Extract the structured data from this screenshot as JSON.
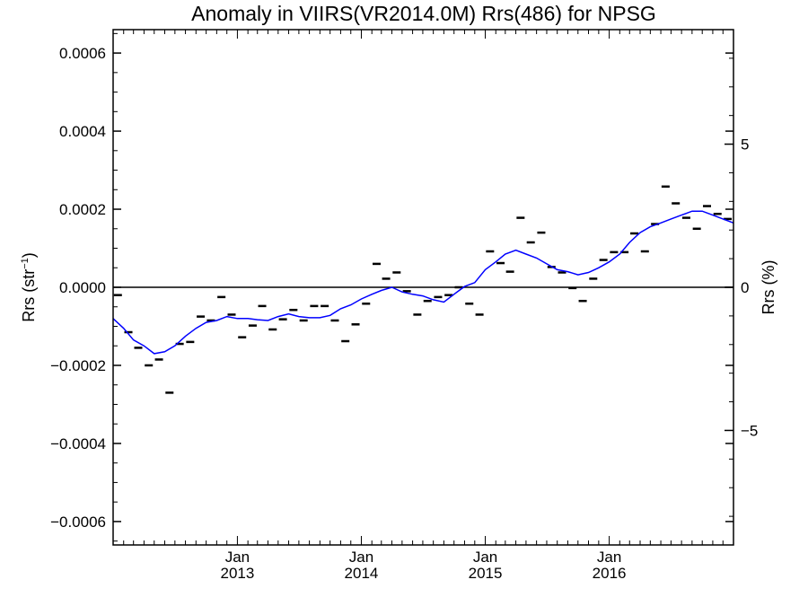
{
  "chart_data": {
    "type": "line",
    "title": "Anomaly in VIIRS(VR2014.0M) Rrs(486) for NPSG",
    "ylabel_left": "Rrs (str",
    "ylabel_left_sup": "−1",
    "ylabel_left_close": ")",
    "ylabel_right": "Rrs (%)",
    "x_range": [
      "2012-01-01",
      "2017-01-01"
    ],
    "y_left_range": [
      -0.00066,
      0.00066
    ],
    "y_left_ticks": [
      -0.0006,
      -0.0004,
      -0.0002,
      0.0,
      0.0002,
      0.0004,
      0.0006
    ],
    "y_left_tick_labels": [
      "−0.0006",
      "−0.0004",
      "−0.0002",
      "0.0000",
      "0.0002",
      "0.0004",
      "0.0006"
    ],
    "y_right_range": [
      -9.0,
      9.0
    ],
    "y_right_ticks": [
      -5,
      0,
      5
    ],
    "y_right_tick_labels": [
      "−5",
      "0",
      "5"
    ],
    "x_ticks": [
      {
        "date": "2013-01-01",
        "month": "Jan",
        "year": "2013"
      },
      {
        "date": "2014-01-01",
        "month": "Jan",
        "year": "2014"
      },
      {
        "date": "2015-01-01",
        "month": "Jan",
        "year": "2015"
      },
      {
        "date": "2016-01-01",
        "month": "Jan",
        "year": "2016"
      }
    ],
    "zero_line": 0.0,
    "colors": {
      "running_mean": "#0000ff",
      "monthly": "#000000",
      "axes": "#000000"
    },
    "series": [
      {
        "style": "dash-markers",
        "x": [
          "2012-01-15",
          "2012-02-15",
          "2012-03-15",
          "2012-04-15",
          "2012-05-15",
          "2012-06-15",
          "2012-07-15",
          "2012-08-15",
          "2012-09-15",
          "2012-10-15",
          "2012-11-15",
          "2012-12-15",
          "2013-01-15",
          "2013-02-15",
          "2013-03-15",
          "2013-04-15",
          "2013-05-15",
          "2013-06-15",
          "2013-07-15",
          "2013-08-15",
          "2013-09-15",
          "2013-10-15",
          "2013-11-15",
          "2013-12-15",
          "2014-01-15",
          "2014-02-15",
          "2014-03-15",
          "2014-04-15",
          "2014-05-15",
          "2014-06-15",
          "2014-07-15",
          "2014-08-15",
          "2014-09-15",
          "2014-10-15",
          "2014-11-15",
          "2014-12-15",
          "2015-01-15",
          "2015-02-15",
          "2015-03-15",
          "2015-04-15",
          "2015-05-15",
          "2015-06-15",
          "2015-07-15",
          "2015-08-15",
          "2015-09-15",
          "2015-10-15",
          "2015-11-15",
          "2015-12-15",
          "2016-01-15",
          "2016-02-15",
          "2016-03-15",
          "2016-04-15",
          "2016-05-15",
          "2016-06-15",
          "2016-07-15",
          "2016-08-15",
          "2016-09-15",
          "2016-10-15",
          "2016-11-15",
          "2016-12-15"
        ],
        "y": [
          -2e-05,
          -0.000115,
          -0.000155,
          -0.0002,
          -0.000185,
          -0.00027,
          -0.000145,
          -0.00014,
          -7.5e-05,
          -8.5e-05,
          -2.5e-05,
          -7e-05,
          -0.000128,
          -9.8e-05,
          -4.8e-05,
          -0.000108,
          -8.2e-05,
          -5.8e-05,
          -8.5e-05,
          -4.8e-05,
          -4.8e-05,
          -8.5e-05,
          -0.000138,
          -9.5e-05,
          -4.2e-05,
          6e-05,
          2.2e-05,
          3.8e-05,
          -1e-05,
          -7e-05,
          -3.5e-05,
          -2.5e-05,
          -2e-05,
          0.0,
          -4.2e-05,
          -7e-05,
          9.2e-05,
          6.2e-05,
          4e-05,
          0.000178,
          0.000115,
          0.00014,
          5.2e-05,
          3.8e-05,
          -2e-06,
          -3.5e-05,
          2.2e-05,
          7e-05,
          9e-05,
          9e-05,
          0.000138,
          9.2e-05,
          0.000162,
          0.000258,
          0.000215,
          0.000178,
          0.00015,
          0.000208,
          0.000188,
          0.000175
        ]
      },
      {
        "style": "line",
        "x": [
          "2012-01-01",
          "2012-02-01",
          "2012-03-01",
          "2012-04-01",
          "2012-05-01",
          "2012-06-01",
          "2012-07-01",
          "2012-08-01",
          "2012-09-01",
          "2012-10-01",
          "2012-11-01",
          "2012-12-01",
          "2013-01-01",
          "2013-02-01",
          "2013-03-01",
          "2013-04-01",
          "2013-05-01",
          "2013-06-01",
          "2013-07-01",
          "2013-08-01",
          "2013-09-01",
          "2013-10-01",
          "2013-11-01",
          "2013-12-01",
          "2014-01-01",
          "2014-02-01",
          "2014-03-01",
          "2014-04-01",
          "2014-05-01",
          "2014-06-01",
          "2014-07-01",
          "2014-08-01",
          "2014-09-01",
          "2014-10-01",
          "2014-11-01",
          "2014-12-01",
          "2015-01-01",
          "2015-02-01",
          "2015-03-01",
          "2015-04-01",
          "2015-05-01",
          "2015-06-01",
          "2015-07-01",
          "2015-08-01",
          "2015-09-01",
          "2015-10-01",
          "2015-11-01",
          "2015-12-01",
          "2016-01-01",
          "2016-02-01",
          "2016-03-01",
          "2016-04-01",
          "2016-05-01",
          "2016-06-01",
          "2016-07-01",
          "2016-08-01",
          "2016-09-01",
          "2016-10-01",
          "2016-11-01",
          "2016-12-01",
          "2017-01-01"
        ],
        "y": [
          -8e-05,
          -0.000105,
          -0.000135,
          -0.00015,
          -0.00017,
          -0.000165,
          -0.00015,
          -0.000125,
          -0.000105,
          -9e-05,
          -8.5e-05,
          -7.5e-05,
          -8e-05,
          -8e-05,
          -8.3e-05,
          -8.5e-05,
          -7.5e-05,
          -6.8e-05,
          -7.5e-05,
          -7.8e-05,
          -7.8e-05,
          -7.2e-05,
          -5.5e-05,
          -4.5e-05,
          -3e-05,
          -1.8e-05,
          -8e-06,
          0.0,
          -1.2e-05,
          -1.8e-05,
          -2.2e-05,
          -3.2e-05,
          -3.8e-05,
          -1.8e-05,
          2e-06,
          1.2e-05,
          4.5e-05,
          6.5e-05,
          8.5e-05,
          9.5e-05,
          8.5e-05,
          7.5e-05,
          6e-05,
          4.5e-05,
          4e-05,
          3.2e-05,
          3.8e-05,
          5e-05,
          6.5e-05,
          8.5e-05,
          0.000115,
          0.00014,
          0.000155,
          0.000165,
          0.000175,
          0.000185,
          0.000195,
          0.000195,
          0.000185,
          0.000175,
          0.000165
        ]
      }
    ]
  }
}
